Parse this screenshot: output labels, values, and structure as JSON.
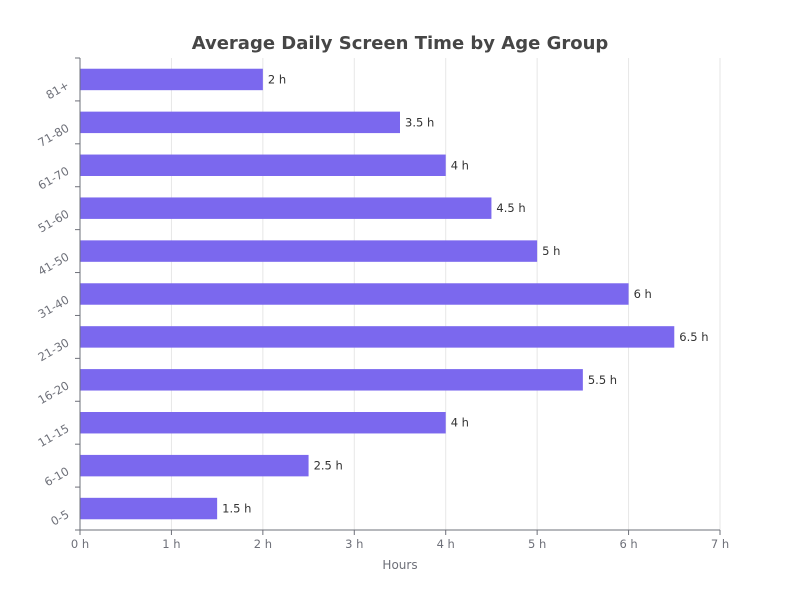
{
  "chart_data": {
    "type": "bar",
    "orientation": "horizontal",
    "title": "Average Daily Screen Time by Age Group",
    "xlabel": "Hours",
    "ylabel": "",
    "categories": [
      "0-5",
      "6-10",
      "11-15",
      "16-20",
      "21-30",
      "31-40",
      "41-50",
      "51-60",
      "61-70",
      "71-80",
      "81+"
    ],
    "values": [
      1.5,
      2.5,
      4,
      5.5,
      6.5,
      6,
      5,
      4.5,
      4,
      3.5,
      2
    ],
    "data_labels": [
      "1.5 h",
      "2.5 h",
      "4 h",
      "5.5 h",
      "6.5 h",
      "6 h",
      "5 h",
      "4.5 h",
      "4 h",
      "3.5 h",
      "2 h"
    ],
    "xlim": [
      0,
      7
    ],
    "x_ticks": [
      0,
      1,
      2,
      3,
      4,
      5,
      6,
      7
    ],
    "x_tick_labels": [
      "0 h",
      "1 h",
      "2 h",
      "3 h",
      "4 h",
      "5 h",
      "6 h",
      "7 h"
    ],
    "grid": true,
    "bar_color": "#7b68ee"
  }
}
